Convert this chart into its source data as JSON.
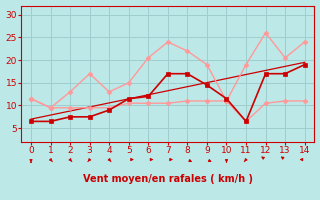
{
  "xlabel": "Vent moyen/en rafales ( km/h )",
  "xlim": [
    -0.5,
    14.5
  ],
  "ylim": [
    2,
    32
  ],
  "yticks": [
    5,
    10,
    15,
    20,
    25,
    30
  ],
  "xticks": [
    0,
    1,
    2,
    3,
    4,
    5,
    6,
    7,
    8,
    9,
    10,
    11,
    12,
    13,
    14
  ],
  "bg_color": "#bde8e8",
  "grid_color": "#9ecece",
  "series_dark_red": {
    "x": [
      0,
      1,
      2,
      3,
      4,
      5,
      6,
      7,
      8,
      9,
      10,
      11,
      12,
      13,
      14
    ],
    "y": [
      6.5,
      6.5,
      7.5,
      7.5,
      9.0,
      11.5,
      12.0,
      17.0,
      17.0,
      14.5,
      11.5,
      6.5,
      17.0,
      17.0,
      19.0
    ],
    "color": "#cc0000",
    "marker": "s",
    "markersize": 2.5,
    "linewidth": 1.2
  },
  "series_trend": {
    "x": [
      0,
      14
    ],
    "y": [
      7.0,
      19.5
    ],
    "color": "#cc0000",
    "linewidth": 0.9,
    "linestyle": "-"
  },
  "series_light_red_upper": {
    "x": [
      0,
      1,
      2,
      3,
      4,
      5,
      6,
      7,
      8,
      9,
      10,
      11,
      12,
      13,
      14
    ],
    "y": [
      11.5,
      9.5,
      13.0,
      17.0,
      13.0,
      15.0,
      20.5,
      24.0,
      22.0,
      19.0,
      11.0,
      19.0,
      26.0,
      20.5,
      24.0
    ],
    "color": "#ff9999",
    "marker": "D",
    "markersize": 2.5,
    "linewidth": 1.0
  },
  "series_light_red_lower": {
    "x": [
      0,
      1,
      2,
      3,
      4,
      5,
      6,
      7,
      8,
      9,
      10,
      11,
      12,
      13,
      14
    ],
    "y": [
      11.5,
      9.5,
      9.5,
      9.5,
      9.5,
      10.5,
      10.5,
      10.5,
      11.0,
      11.0,
      11.0,
      6.5,
      10.5,
      11.0,
      11.0
    ],
    "color": "#ff9999",
    "marker": "D",
    "markersize": 2.5,
    "linewidth": 1.0
  },
  "wind_arrows": {
    "x": [
      0,
      1,
      2,
      3,
      4,
      5,
      6,
      7,
      8,
      9,
      10,
      11,
      12,
      13,
      14
    ],
    "dx": [
      0.0,
      0.5,
      0.5,
      -0.5,
      0.5,
      0.7,
      0.7,
      0.7,
      0.7,
      0.7,
      0.0,
      -0.5,
      -0.5,
      -0.5,
      -0.7
    ],
    "dy": [
      -0.7,
      -0.5,
      -0.5,
      -0.5,
      -0.5,
      0.0,
      0.0,
      0.0,
      -0.3,
      -0.3,
      -0.7,
      -0.5,
      0.3,
      0.3,
      0.0
    ]
  }
}
